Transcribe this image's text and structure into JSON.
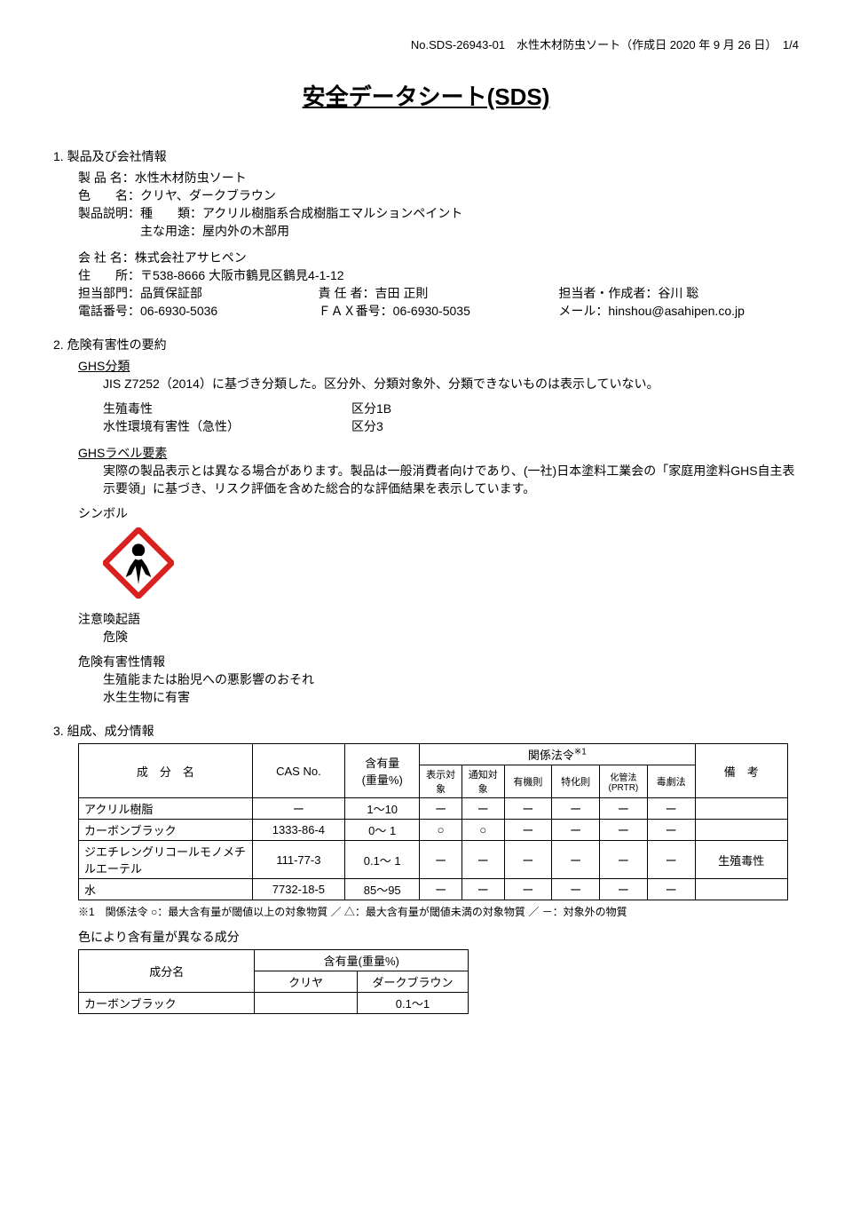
{
  "header": {
    "text": "No.SDS-26943-01　水性木材防虫ソート（作成日 2020 年 9 月 26 日）　1/4"
  },
  "title": "安全データシート(SDS)",
  "s1": {
    "num": "1.",
    "head": "製品及び会社情報",
    "product_label": "製 品 名：",
    "product": "水性木材防虫ソート",
    "color_label": "色　　名：",
    "color": "クリヤ、ダークブラウン",
    "desc_label": "製品説明：",
    "desc_type_label": "種　　類：",
    "desc_type": "アクリル樹脂系合成樹脂エマルションペイント",
    "desc_use_label": "主な用途：",
    "desc_use": "屋内外の木部用",
    "company_label": "会 社 名：",
    "company": "株式会社アサヒペン",
    "addr_label": "住　　所：",
    "addr": "〒538-8666 大阪市鶴見区鶴見4-1-12",
    "dept_label": "担当部門：",
    "dept": "品質保証部",
    "resp_label": "責 任 者：",
    "resp": "吉田 正則",
    "author_label": "担当者・作成者：",
    "author": "谷川 聡",
    "tel_label": "電話番号：",
    "tel": "06-6930-5036",
    "fax_label": "ＦＡＸ番号：",
    "fax": "06-6930-5035",
    "mail_label": "メール：",
    "mail": "hinshou@asahipen.co.jp"
  },
  "s2": {
    "num": "2.",
    "head": "危険有害性の要約",
    "ghs_class": "GHS分類",
    "ghs_class_desc": "JIS Z7252（2014）に基づき分類した。区分外、分類対象外、分類できないものは表示していない。",
    "hz1_name": "生殖毒性",
    "hz1_val": "区分1B",
    "hz2_name": "水性環境有害性（急性）",
    "hz2_val": "区分3",
    "ghs_label": "GHSラベル要素",
    "ghs_label_desc": "実際の製品表示とは異なる場合があります。製品は一般消費者向けであり、(一社)日本塗料工業会の「家庭用塗料GHS自主表示要領」に基づき、リスク評価を含めた総合的な評価結果を表示しています。",
    "symbol": "シンボル",
    "signal_label": "注意喚起語",
    "signal": "危険",
    "hazinfo_label": "危険有害性情報",
    "hazinfo1": "生殖能または胎児への悪影響のおそれ",
    "hazinfo2": "水生生物に有害"
  },
  "s3": {
    "num": "3.",
    "head": "組成、成分情報",
    "t1": {
      "h_name": "成　分　名",
      "h_cas": "CAS No.",
      "h_content": "含有量\n(重量%)",
      "h_laws": "関係法令",
      "h_laws_sup": "※1",
      "h_notes": "備　考",
      "h_l1": "表示対象",
      "h_l2": "通知対象",
      "h_l3": "有機則",
      "h_l4": "特化則",
      "h_l5": "化管法(PRTR)",
      "h_l6": "毒劇法",
      "rows": [
        {
          "name": "アクリル樹脂",
          "cas": "ー",
          "content": "1～10",
          "l1": "ー",
          "l2": "ー",
          "l3": "ー",
          "l4": "ー",
          "l5": "ー",
          "l6": "ー",
          "note": ""
        },
        {
          "name": "カーボンブラック",
          "cas": "1333-86-4",
          "content": "0～ 1",
          "l1": "○",
          "l2": "○",
          "l3": "ー",
          "l4": "ー",
          "l5": "ー",
          "l6": "ー",
          "note": ""
        },
        {
          "name": "ジエチレングリコールモノメチルエーテル",
          "cas": "111-77-3",
          "content": "0.1～ 1",
          "l1": "ー",
          "l2": "ー",
          "l3": "ー",
          "l4": "ー",
          "l5": "ー",
          "l6": "ー",
          "note": "生殖毒性"
        },
        {
          "name": "水",
          "cas": "7732-18-5",
          "content": "85～95",
          "l1": "ー",
          "l2": "ー",
          "l3": "ー",
          "l4": "ー",
          "l5": "ー",
          "l6": "ー",
          "note": ""
        }
      ]
    },
    "footnote": "※1　関係法令 ○：最大含有量が閾値以上の対象物質 ／ △：最大含有量が閾値未満の対象物質 ／ －：対象外の物質",
    "t2_title": "色により含有量が異なる成分",
    "t2": {
      "h_name": "成分名",
      "h_content": "含有量(重量%)",
      "h_c1": "クリヤ",
      "h_c2": "ダークブラウン",
      "r1_name": "カーボンブラック",
      "r1_c1": "",
      "r1_c2": "0.1～1"
    }
  },
  "colors": {
    "hazard_red": "#d9221f",
    "hazard_black": "#000000",
    "hazard_white": "#ffffff"
  }
}
